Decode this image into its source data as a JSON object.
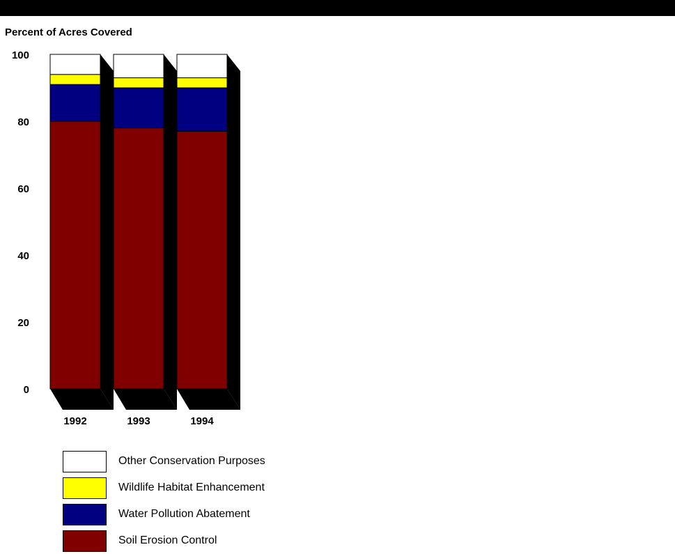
{
  "chart_data": {
    "type": "bar",
    "stacked": true,
    "style": "3d",
    "ylabel": "Percent of Acres Covered",
    "xlabel": "",
    "ylim": [
      0,
      100
    ],
    "yticks": [
      "0",
      "20",
      "40",
      "60",
      "80",
      "100"
    ],
    "categories": [
      "1992",
      "1993",
      "1994"
    ],
    "series": [
      {
        "name": "Soil Erosion Control",
        "color": "#800000",
        "values": [
          80,
          78,
          77
        ]
      },
      {
        "name": "Water Pollution Abatement",
        "color": "#000080",
        "values": [
          11,
          12,
          13
        ]
      },
      {
        "name": "Wildlife Habitat Enhancement",
        "color": "#ffff00",
        "values": [
          3,
          3,
          3
        ]
      },
      {
        "name": "Other Conservation Purposes",
        "color": "#ffffff",
        "values": [
          6,
          7,
          7
        ]
      }
    ],
    "legend_order": [
      "Other Conservation Purposes",
      "Wildlife Habitat Enhancement",
      "Water Pollution Abatement",
      "Soil Erosion Control"
    ],
    "legend_position": "bottom-left",
    "grid": false
  }
}
